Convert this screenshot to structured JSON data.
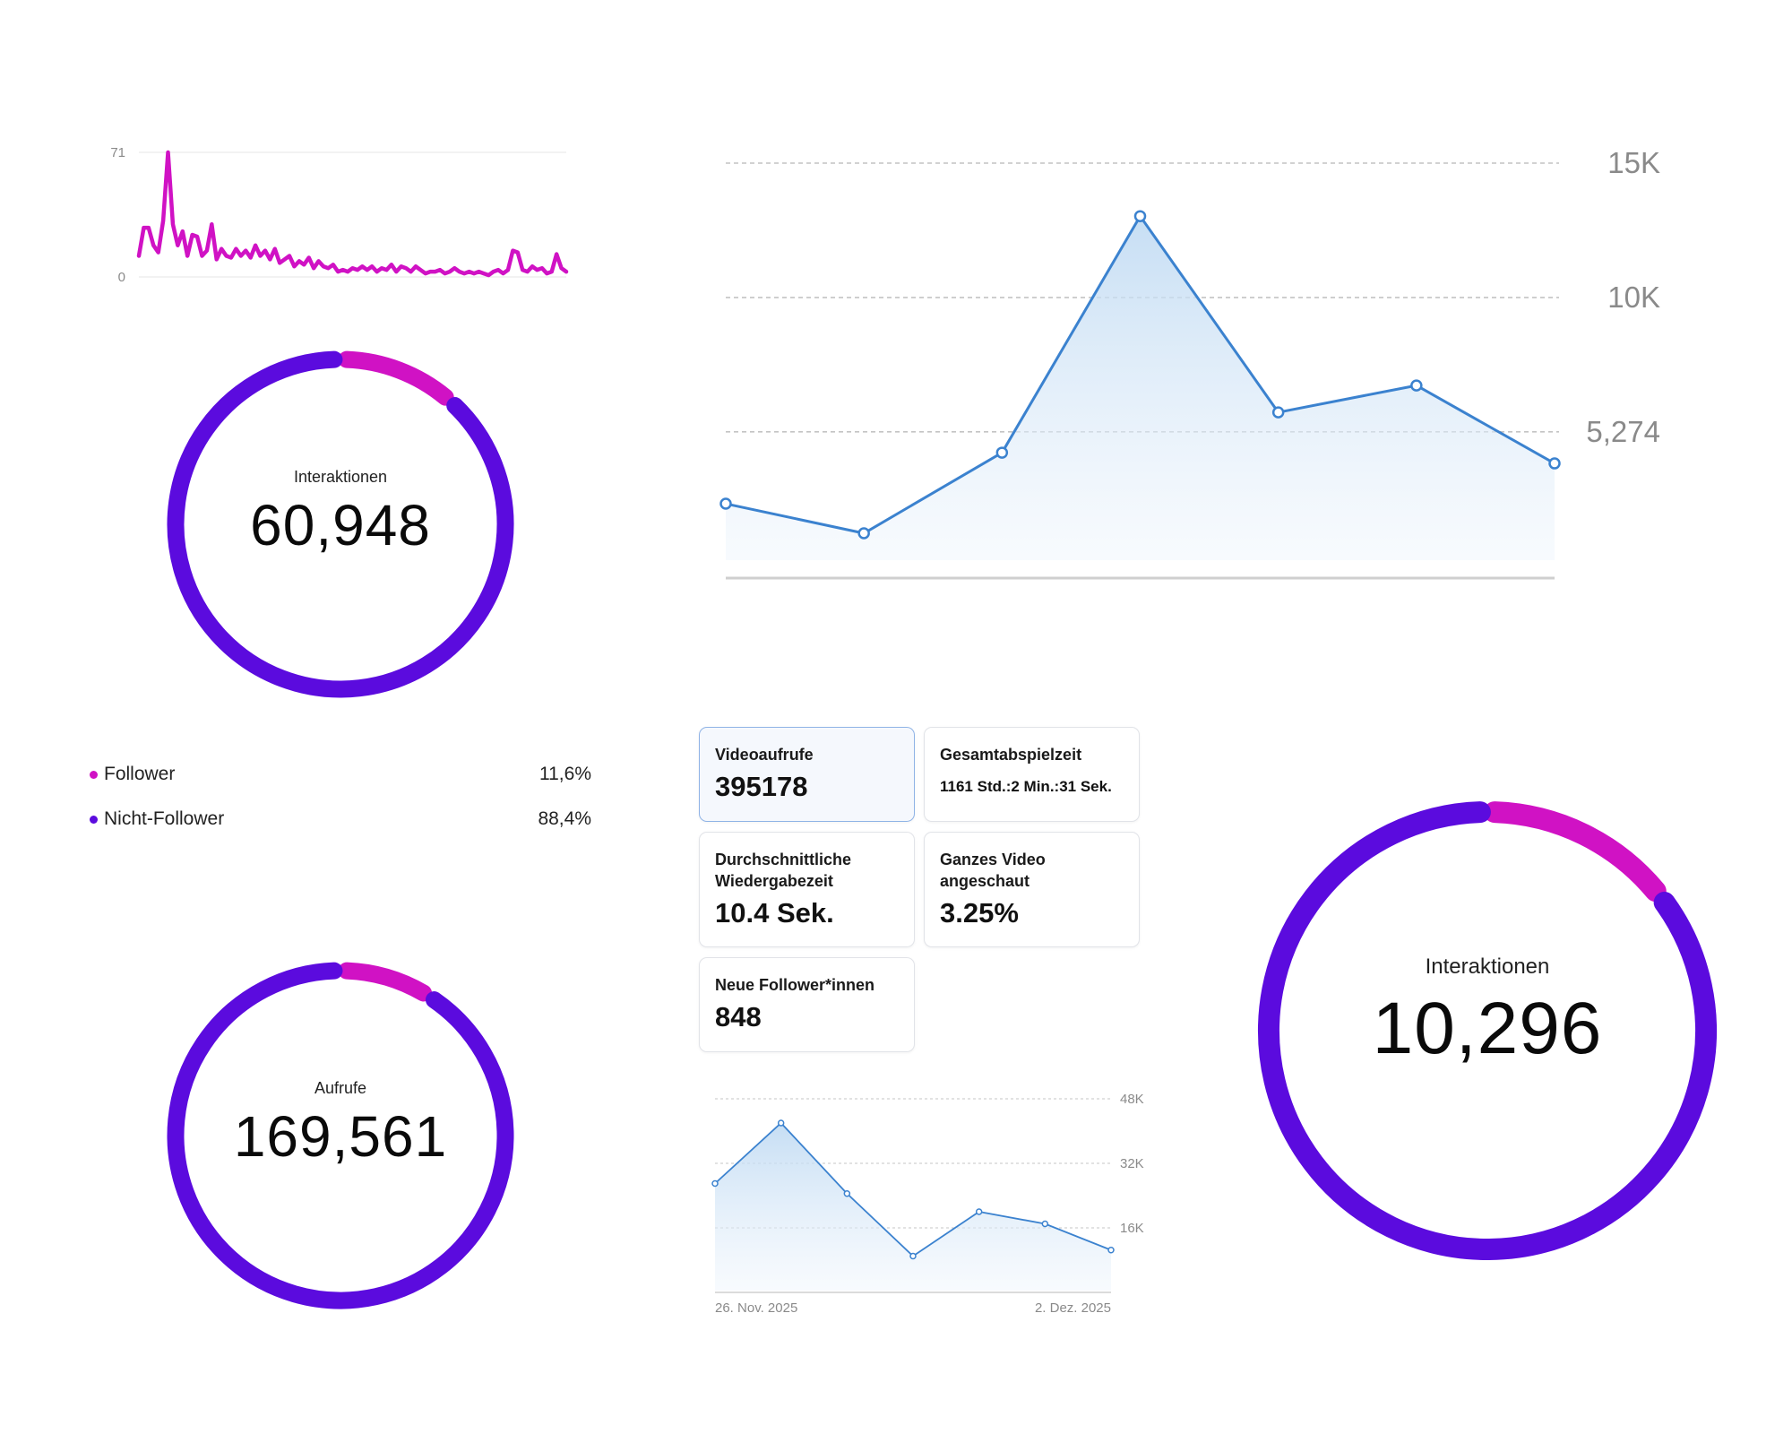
{
  "colors": {
    "magenta": "#d012c4",
    "violet": "#5b0bde",
    "blue_line": "#3b82cf",
    "grid": "#c4c4c4",
    "axis_text": "#8a8a8a"
  },
  "sparkline": {
    "y_top_label": "71",
    "y_bottom_label": "0"
  },
  "donut_interactions": {
    "label": "Interaktionen",
    "value": "60,948",
    "follower_fraction": 0.116
  },
  "legend": [
    {
      "name": "Follower",
      "pct": "11,6%",
      "color": "#d012c4"
    },
    {
      "name": "Nicht-Follower",
      "pct": "88,4%",
      "color": "#5b0bde"
    }
  ],
  "donut_views": {
    "label": "Aufrufe",
    "value": "169,561",
    "follower_fraction": 0.09
  },
  "donut_interactions_large": {
    "label": "Interaktionen",
    "value": "10,296",
    "follower_fraction": 0.145
  },
  "cards": [
    {
      "title": "Videoaufrufe",
      "value": "395178",
      "selected": true
    },
    {
      "title": "Gesamtabspielzeit",
      "value": "1161 Std.:2 Min.:31 Sek."
    },
    {
      "title": "Durchschnittliche Wiedergabezeit",
      "value": "10.4 Sek."
    },
    {
      "title": "Ganzes Video angeschaut",
      "value": "3.25%"
    },
    {
      "title": "Neue Follower*innen",
      "value": "848"
    }
  ],
  "chart_data": [
    {
      "type": "line",
      "x": [
        1,
        2,
        3,
        4,
        5,
        6,
        7,
        8,
        9,
        10,
        11,
        12,
        13,
        14,
        15,
        16,
        17,
        18,
        19,
        20,
        21,
        22,
        23,
        24,
        25,
        26,
        27,
        28,
        29,
        30,
        31,
        32,
        33,
        34,
        35,
        36,
        37,
        38,
        39,
        40,
        41,
        42,
        43,
        44,
        45,
        46,
        47,
        48,
        49,
        50,
        51,
        52,
        53,
        54,
        55,
        56,
        57,
        58,
        59,
        60,
        61,
        62,
        63,
        64,
        65,
        66,
        67,
        68,
        69,
        70,
        71,
        72,
        73,
        74,
        75,
        76,
        77,
        78,
        79,
        80,
        81,
        82,
        83,
        84,
        85,
        86,
        87,
        88,
        89
      ],
      "series": [
        {
          "color": "#d012c4",
          "values": [
            12,
            28,
            28,
            18,
            14,
            32,
            71,
            30,
            18,
            26,
            12,
            24,
            23,
            12,
            15,
            30,
            10,
            16,
            12,
            11,
            16,
            12,
            15,
            11,
            18,
            12,
            15,
            10,
            16,
            8,
            10,
            12,
            6,
            9,
            7,
            11,
            5,
            9,
            6,
            5,
            7,
            3,
            4,
            3,
            5,
            4,
            6,
            4,
            6,
            3,
            5,
            4,
            7,
            3,
            6,
            5,
            3,
            6,
            4,
            2,
            3,
            3,
            4,
            2,
            3,
            5,
            3,
            2,
            3,
            2,
            3,
            2,
            1,
            3,
            4,
            2,
            4,
            15,
            14,
            4,
            3,
            6,
            4,
            5,
            2,
            3,
            13,
            5,
            3
          ]
        }
      ],
      "yticks": [
        "0",
        "71"
      ],
      "ylim": [
        0,
        71
      ],
      "grid": true
    },
    {
      "type": "area",
      "x": [
        1,
        2,
        3,
        4,
        5,
        6,
        7
      ],
      "series": [
        {
          "color": "#3b82cf",
          "values": [
            2600,
            1500,
            4500,
            13300,
            6000,
            7000,
            4100
          ]
        }
      ],
      "yticks": [
        "5,274",
        "10K",
        "15K"
      ],
      "ytick_values": [
        5274,
        10274,
        15274
      ],
      "ylim": [
        0,
        15274
      ],
      "grid": true
    },
    {
      "type": "area",
      "x": [
        "26. Nov. 2025",
        "27. Nov. 2025",
        "28. Nov. 2025",
        "29. Nov. 2025",
        "30. Nov. 2025",
        "1. Dez. 2025",
        "2. Dez. 2025"
      ],
      "series": [
        {
          "color": "#3b82cf",
          "values": [
            27000,
            42000,
            24500,
            9000,
            20000,
            17000,
            10500
          ]
        }
      ],
      "xtick_labels": [
        "26. Nov. 2025",
        "2. Dez. 2025"
      ],
      "yticks": [
        "16K",
        "32K",
        "48K"
      ],
      "ytick_values": [
        16000,
        32000,
        48000
      ],
      "ylim": [
        0,
        48000
      ],
      "grid": true
    }
  ]
}
